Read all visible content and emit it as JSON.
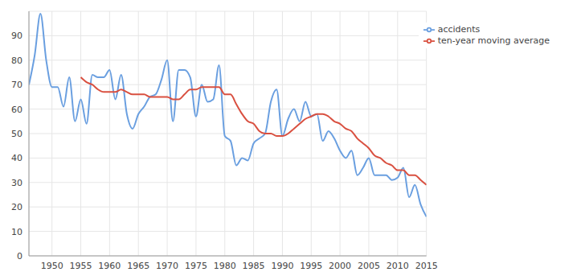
{
  "chart_data": {
    "type": "line",
    "x": [
      1946,
      1947,
      1948,
      1949,
      1950,
      1951,
      1952,
      1953,
      1954,
      1955,
      1956,
      1957,
      1958,
      1959,
      1960,
      1961,
      1962,
      1963,
      1964,
      1965,
      1966,
      1967,
      1968,
      1969,
      1970,
      1971,
      1972,
      1973,
      1974,
      1975,
      1976,
      1977,
      1978,
      1979,
      1980,
      1981,
      1982,
      1983,
      1984,
      1985,
      1986,
      1987,
      1988,
      1989,
      1990,
      1991,
      1992,
      1993,
      1994,
      1995,
      1996,
      1997,
      1998,
      1999,
      2000,
      2001,
      2002,
      2003,
      2004,
      2005,
      2006,
      2007,
      2008,
      2009,
      2010,
      2011,
      2012,
      2013,
      2014,
      2015
    ],
    "series": [
      {
        "name": "accidents",
        "color": "#6a9fe0",
        "values": [
          70,
          82,
          99,
          80,
          69,
          69,
          61,
          73,
          55,
          64,
          54,
          74,
          73,
          73,
          76,
          64,
          74,
          58,
          52,
          58,
          61,
          65,
          66,
          72,
          80,
          55,
          76,
          76,
          73,
          57,
          70,
          63,
          64,
          78,
          49,
          47,
          37,
          40,
          39,
          46,
          48,
          50,
          63,
          68,
          49,
          56,
          60,
          55,
          63,
          57,
          58,
          47,
          51,
          48,
          43,
          40,
          43,
          33,
          36,
          40,
          33,
          33,
          33,
          31,
          32,
          36,
          24,
          29,
          21,
          16
        ]
      },
      {
        "name": "ten-year moving average",
        "color": "#d95040",
        "values": [
          null,
          null,
          null,
          null,
          null,
          null,
          null,
          null,
          null,
          73,
          71,
          70,
          68,
          67,
          67,
          67,
          68,
          67,
          66,
          66,
          66,
          65,
          65,
          65,
          65,
          64,
          64,
          66,
          68,
          68,
          69,
          69,
          69,
          69,
          66,
          66,
          62,
          58,
          55,
          54,
          51,
          50,
          50,
          49,
          49,
          50,
          52,
          54,
          56,
          57,
          58,
          58,
          57,
          55,
          54,
          52,
          51,
          48,
          46,
          44,
          41,
          40,
          38,
          37,
          35,
          35,
          33,
          33,
          31,
          29
        ]
      }
    ],
    "xlim": [
      1946,
      2015
    ],
    "xticks": [
      1950,
      1955,
      1960,
      1965,
      1970,
      1975,
      1980,
      1985,
      1990,
      1995,
      2000,
      2005,
      2010,
      2015
    ],
    "ylim": [
      0,
      100
    ],
    "yticks": [
      0,
      10,
      20,
      30,
      40,
      50,
      60,
      70,
      80,
      90
    ],
    "grid": true,
    "legend": "top-right"
  }
}
